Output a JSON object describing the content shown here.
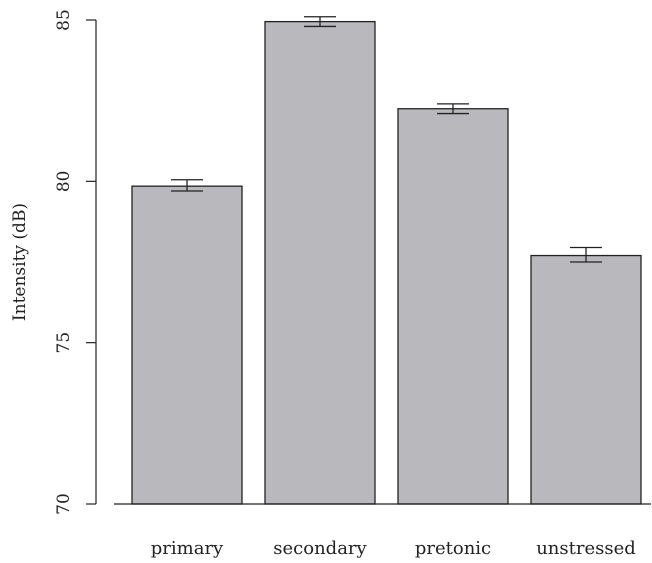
{
  "chart_data": {
    "type": "bar",
    "categories": [
      "primary",
      "secondary",
      "pretonic",
      "unstressed"
    ],
    "values": [
      79.85,
      84.95,
      82.25,
      77.7
    ],
    "error_low": [
      79.7,
      84.8,
      82.1,
      77.5
    ],
    "error_high": [
      80.05,
      85.1,
      82.4,
      77.95
    ],
    "title": "",
    "xlabel": "",
    "ylabel": "Intensity (dB)",
    "ylim": [
      70,
      85
    ],
    "yticks": [
      70,
      75,
      80,
      85
    ],
    "grid": false,
    "legend": "none",
    "bar_color": "#b9b9bd",
    "edge_color": "#222222"
  }
}
